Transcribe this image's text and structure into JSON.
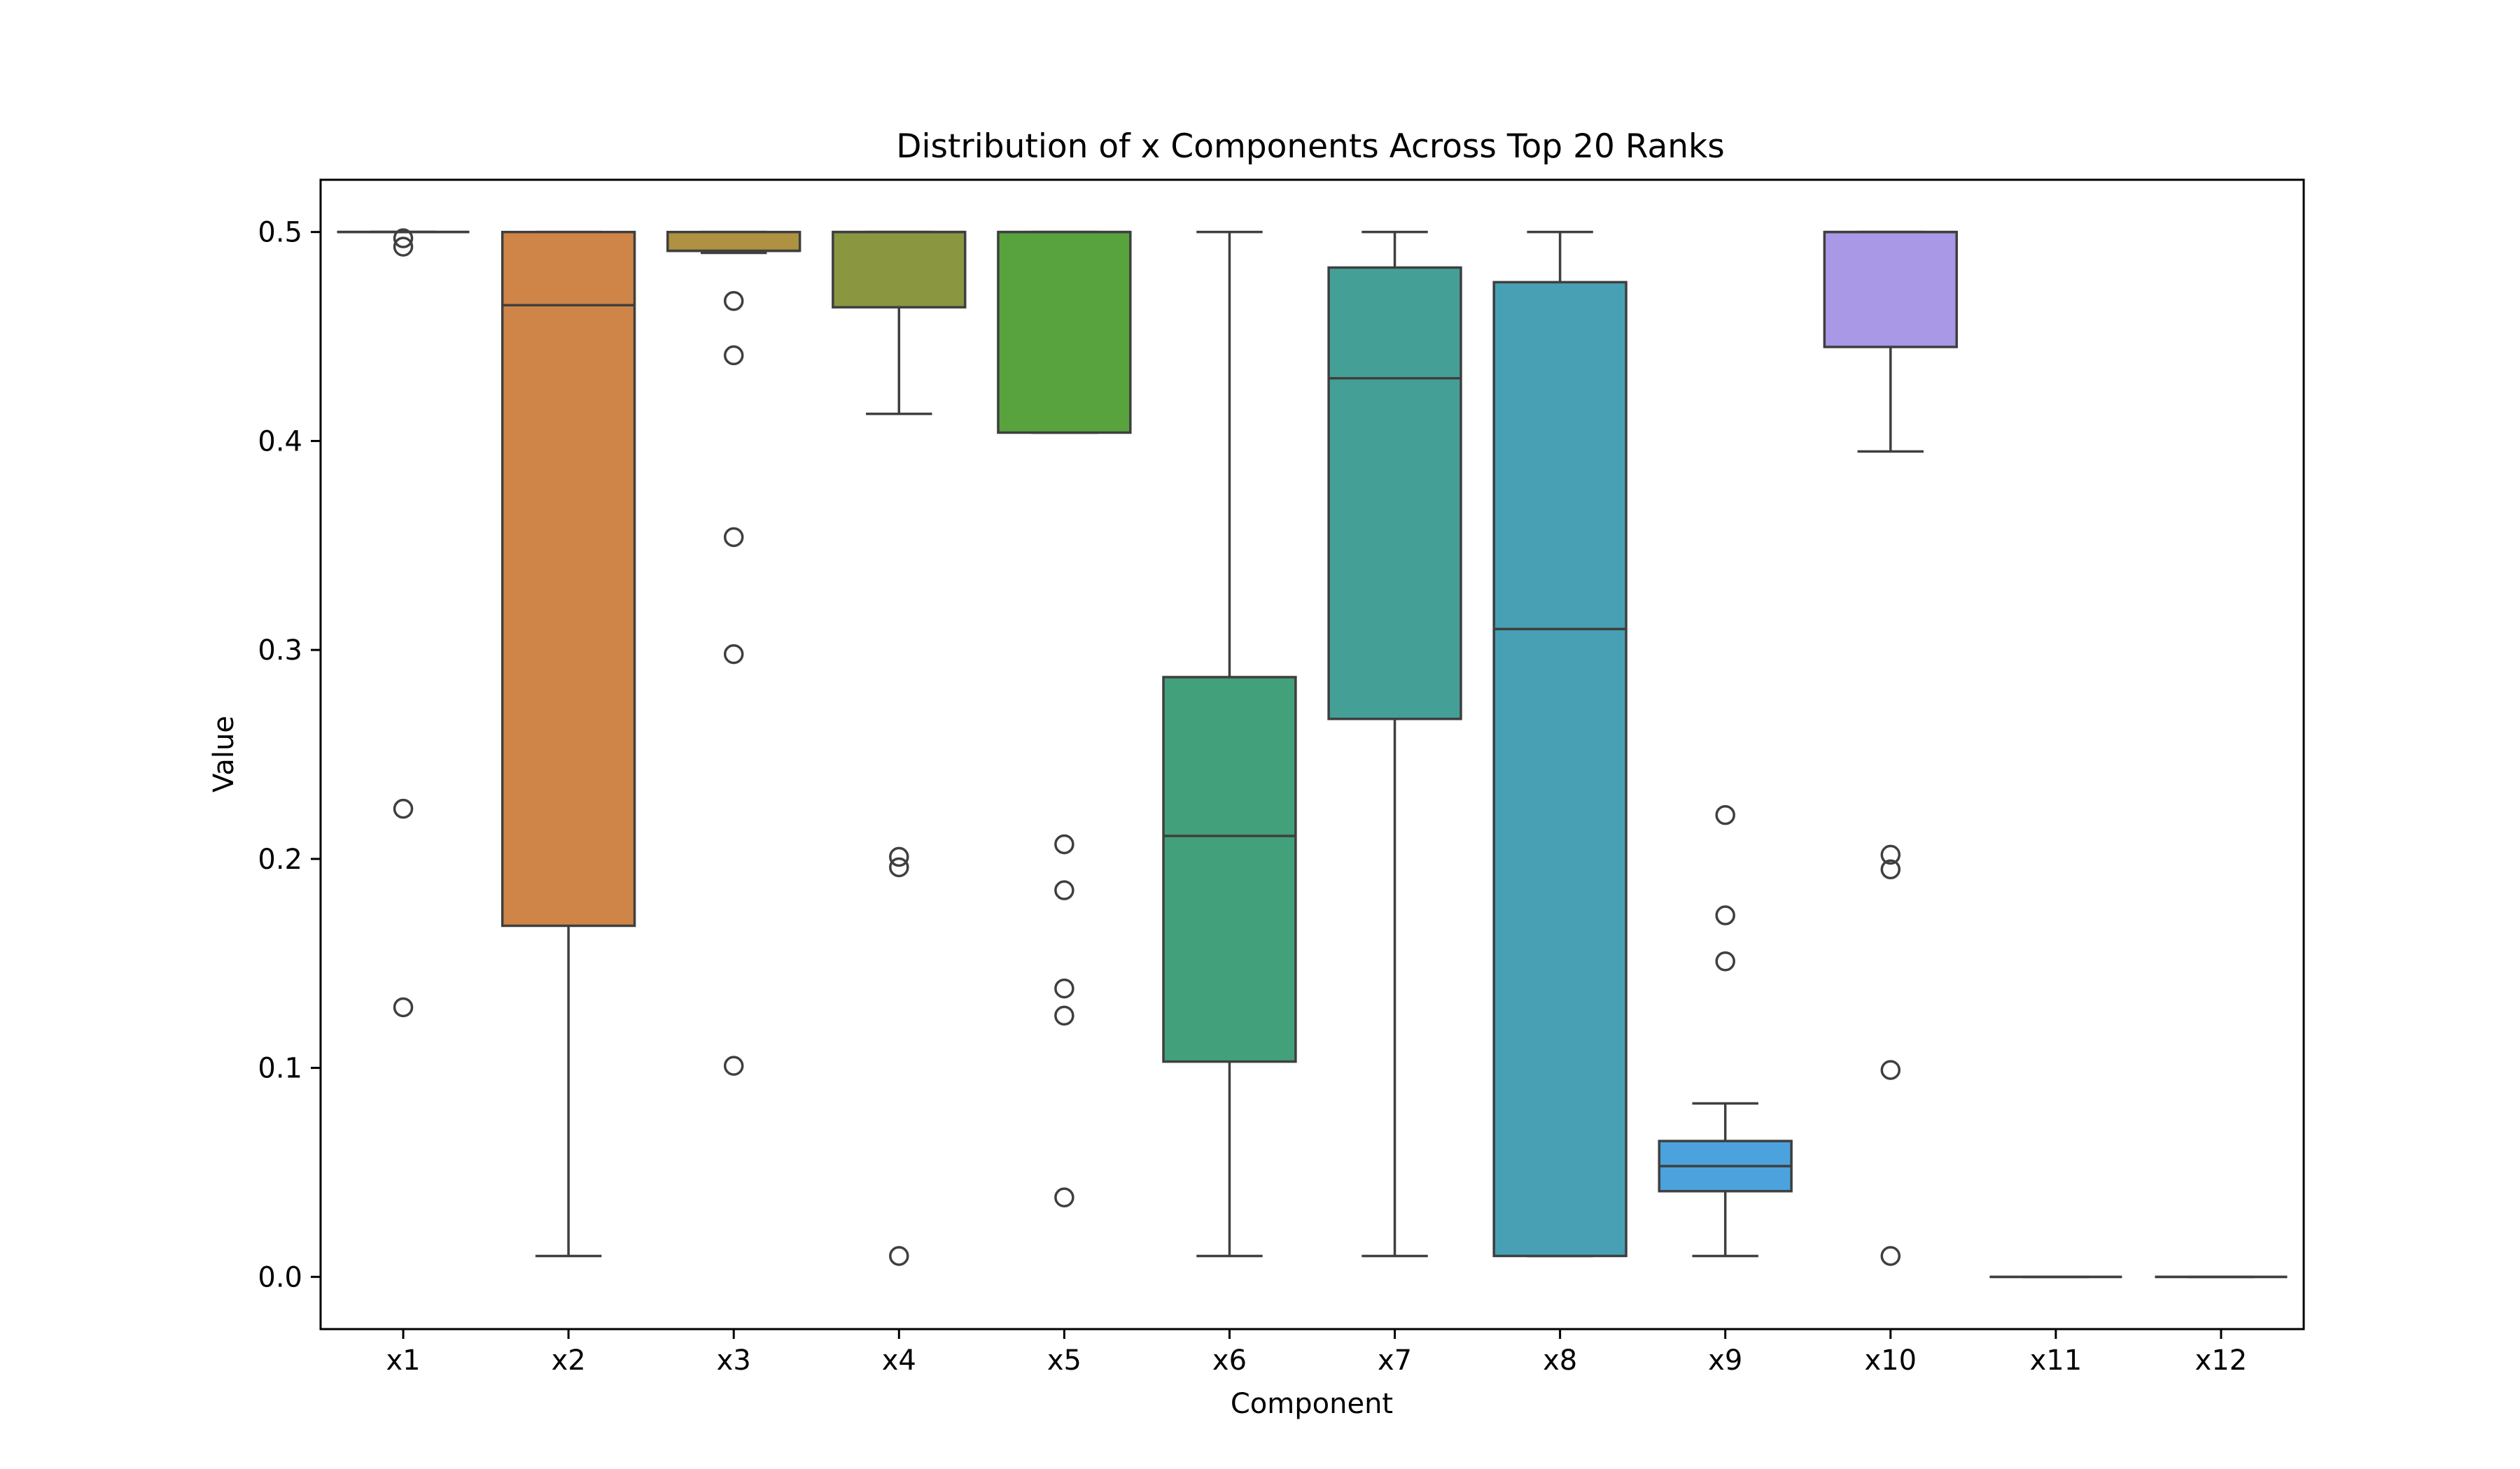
{
  "chart_data": {
    "type": "box",
    "title": "Distribution of x Components Across Top 20 Ranks",
    "xlabel": "Component",
    "ylabel": "Value",
    "ylim": [
      -0.025,
      0.525
    ],
    "yticks": [
      "0.0",
      "0.1",
      "0.2",
      "0.3",
      "0.4",
      "0.5"
    ],
    "grid": false,
    "categories": [
      "x1",
      "x2",
      "x3",
      "x4",
      "x5",
      "x6",
      "x7",
      "x8",
      "x9",
      "x10",
      "x11",
      "x12"
    ],
    "series": [
      {
        "category": "x1",
        "color": "#c44e52",
        "whisker_low": 0.5,
        "q1": 0.5,
        "median": 0.5,
        "q3": 0.5,
        "whisker_high": 0.5,
        "outliers": [
          0.497,
          0.493,
          0.224,
          0.129
        ]
      },
      {
        "category": "x2",
        "color": "#cf8548",
        "whisker_low": 0.01,
        "q1": 0.168,
        "median": 0.465,
        "q3": 0.5,
        "whisker_high": 0.5,
        "outliers": []
      },
      {
        "category": "x3",
        "color": "#ae9141",
        "whisker_low": 0.49,
        "q1": 0.491,
        "median": 0.491,
        "q3": 0.5,
        "whisker_high": 0.5,
        "outliers": [
          0.467,
          0.441,
          0.354,
          0.298,
          0.101
        ]
      },
      {
        "category": "x4",
        "color": "#8b9641",
        "whisker_low": 0.413,
        "q1": 0.464,
        "median": 0.5,
        "q3": 0.5,
        "whisker_high": 0.5,
        "outliers": [
          0.201,
          0.196,
          0.01
        ]
      },
      {
        "category": "x5",
        "color": "#58a33e",
        "whisker_low": 0.404,
        "q1": 0.404,
        "median": 0.5,
        "q3": 0.5,
        "whisker_high": 0.5,
        "outliers": [
          0.207,
          0.185,
          0.138,
          0.125,
          0.038
        ]
      },
      {
        "category": "x6",
        "color": "#42a07a",
        "whisker_low": 0.01,
        "q1": 0.103,
        "median": 0.211,
        "q3": 0.287,
        "whisker_high": 0.5,
        "outliers": []
      },
      {
        "category": "x7",
        "color": "#44a097",
        "whisker_low": 0.01,
        "q1": 0.267,
        "median": 0.43,
        "q3": 0.483,
        "whisker_high": 0.5,
        "outliers": []
      },
      {
        "category": "x8",
        "color": "#47a0b3",
        "whisker_low": 0.01,
        "q1": 0.01,
        "median": 0.31,
        "q3": 0.476,
        "whisker_high": 0.5,
        "outliers": []
      },
      {
        "category": "x9",
        "color": "#4ba2dd",
        "whisker_low": 0.01,
        "q1": 0.041,
        "median": 0.053,
        "q3": 0.065,
        "whisker_high": 0.083,
        "outliers": [
          0.221,
          0.173,
          0.151
        ]
      },
      {
        "category": "x10",
        "color": "#a898e6",
        "whisker_low": 0.395,
        "q1": 0.445,
        "median": 0.5,
        "q3": 0.5,
        "whisker_high": 0.5,
        "outliers": [
          0.202,
          0.195,
          0.099,
          0.01
        ]
      },
      {
        "category": "x11",
        "color": "#d989d7",
        "whisker_low": 0.0,
        "q1": 0.0,
        "median": 0.0,
        "q3": 0.0,
        "whisker_high": 0.0,
        "outliers": []
      },
      {
        "category": "x12",
        "color": "#e792b8",
        "whisker_low": 0.0,
        "q1": 0.0,
        "median": 0.0,
        "q3": 0.0,
        "whisker_high": 0.0,
        "outliers": []
      }
    ]
  }
}
